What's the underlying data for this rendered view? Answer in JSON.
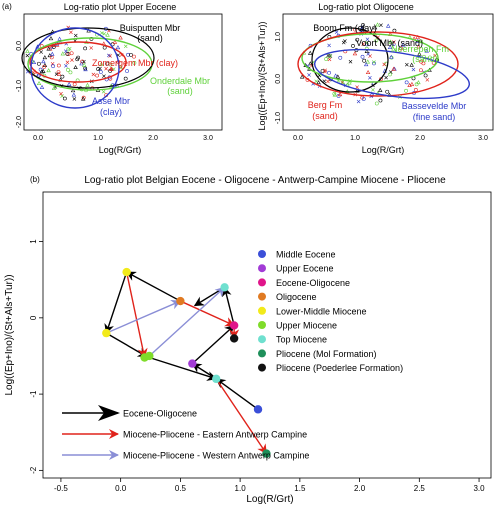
{
  "colors": {
    "middle_eocene": "#3b4fd8",
    "upper_eocene": "#a23bd6",
    "eocene_oligocene": "#e0158a",
    "oligocene": "#e07a22",
    "lower_middle_miocene": "#f2ea1a",
    "upper_miocene": "#7fdc2a",
    "top_miocene": "#6fe0cf",
    "pliocene_mol": "#1e8f5a",
    "pliocene_poederlee": "#111111",
    "arrow_black": "#000000",
    "arrow_red": "#e0231b",
    "arrow_blue": "#8a8ed6",
    "clay_red": "#e0231b",
    "sand_green": "#5fd13a",
    "blue_label": "#2d3bc9",
    "black": "#000000"
  },
  "panel_a": {
    "tag": "(a)",
    "left": {
      "title": "Log-ratio plot Upper Eocene",
      "xlabel": "Log(R/Grt)",
      "ylabel": "Log((Ep+Ino)/(St+Als+Tur))",
      "xticks": [
        "0.0",
        "1.0",
        "2.0",
        "3.0"
      ],
      "yticks": [
        "0.0",
        "-1.0",
        "-2.0"
      ],
      "labels": {
        "buisputten_1": "Buisputten Mbr",
        "buisputten_2": "(sand)",
        "zomergem": "Zomergem Mbr (clay)",
        "onderdale_1": "Onderdale Mbr",
        "onderdale_2": "(sand)",
        "asse_1": "Asse Mbr",
        "asse_2": "(clay)"
      }
    },
    "right": {
      "title": "Log-ratio plot Oligocene",
      "xlabel": "Log(R/Grt)",
      "xticks": [
        "0.0",
        "1.0",
        "2.0",
        "3.0"
      ],
      "yticks": [
        "1.0",
        "0.0",
        "-1.0"
      ],
      "labels": {
        "boom": "Boom Fm (clay)",
        "voort_1": "Voort Mbr (sand)",
        "neerrepen_1": "Neerrepen Fm",
        "neerrepen_2": "(sand)",
        "berg_1": "Berg Fm",
        "berg_2": "(sand)",
        "bassevelde_1": "Bassevelde Mbr",
        "bassevelde_2": "(fine sand)"
      }
    }
  },
  "chart_data": {
    "type": "scatter",
    "tag": "(b)",
    "title": "Log-ratio plot Belgian Eocene - Oligocene - Antwerp-Campine Miocene - Pliocene",
    "xlabel": "Log(R/Grt)",
    "ylabel": "Log((Ep+Ino)/(St+Als+Tur))",
    "xlim": [
      -0.65,
      3.1
    ],
    "ylim": [
      -2.1,
      1.65
    ],
    "xticks": [
      -0.5,
      0.0,
      0.5,
      1.0,
      1.5,
      2.0,
      2.5,
      3.0
    ],
    "yticks": [
      -2,
      -1,
      0,
      1
    ],
    "xtick_labels": [
      "-0.5",
      "0.0",
      "0.5",
      "1.0",
      "1.5",
      "2.0",
      "2.5",
      "3.0"
    ],
    "ytick_labels": [
      "-2",
      "-1",
      "0",
      "1"
    ],
    "points": [
      {
        "x": 1.15,
        "y": -1.2,
        "color": "#3b4fd8"
      },
      {
        "x": 0.6,
        "y": -0.6,
        "color": "#a23bd6"
      },
      {
        "x": 0.95,
        "y": -0.1,
        "color": "#e0158a"
      },
      {
        "x": 0.5,
        "y": 0.22,
        "color": "#e07a22"
      },
      {
        "x": 0.05,
        "y": 0.6,
        "color": "#f2ea1a"
      },
      {
        "x": -0.12,
        "y": -0.2,
        "color": "#f2ea1a"
      },
      {
        "x": 0.2,
        "y": -0.52,
        "color": "#7fdc2a"
      },
      {
        "x": 0.24,
        "y": -0.5,
        "color": "#7fdc2a"
      },
      {
        "x": 0.8,
        "y": -0.8,
        "color": "#6fe0cf"
      },
      {
        "x": 0.87,
        "y": 0.4,
        "color": "#6fe0cf"
      },
      {
        "x": 1.22,
        "y": -1.78,
        "color": "#1e8f5a"
      },
      {
        "x": 0.95,
        "y": -0.27,
        "color": "#111111"
      }
    ],
    "arrows": [
      {
        "from": [
          1.15,
          -1.2
        ],
        "to": [
          0.8,
          -0.8
        ],
        "color": "#000000"
      },
      {
        "from": [
          0.8,
          -0.8
        ],
        "to": [
          0.6,
          -0.6
        ],
        "color": "#000000"
      },
      {
        "from": [
          0.6,
          -0.6
        ],
        "to": [
          0.95,
          -0.1
        ],
        "color": "#000000"
      },
      {
        "from": [
          0.95,
          -0.1
        ],
        "to": [
          0.87,
          0.4
        ],
        "color": "#000000"
      },
      {
        "from": [
          0.87,
          0.4
        ],
        "to": [
          0.62,
          0.16
        ],
        "color": "#000000"
      },
      {
        "from": [
          0.5,
          0.22
        ],
        "to": [
          0.05,
          0.6
        ],
        "color": "#000000"
      },
      {
        "from": [
          0.05,
          0.6
        ],
        "to": [
          -0.12,
          -0.2
        ],
        "color": "#000000"
      },
      {
        "from": [
          -0.12,
          -0.2
        ],
        "to": [
          0.22,
          -0.51
        ],
        "color": "#000000"
      },
      {
        "from": [
          0.22,
          -0.51
        ],
        "to": [
          0.8,
          -0.8
        ],
        "color": "#000000"
      },
      {
        "from": [
          0.5,
          0.22
        ],
        "to": [
          0.95,
          -0.1
        ],
        "color": "#e0231b"
      },
      {
        "from": [
          0.05,
          0.6
        ],
        "to": [
          0.2,
          -0.52
        ],
        "color": "#e0231b"
      },
      {
        "from": [
          0.8,
          -0.8
        ],
        "to": [
          1.22,
          -1.78
        ],
        "color": "#e0231b"
      },
      {
        "from": [
          0.95,
          -0.1
        ],
        "to": [
          0.95,
          -0.27
        ],
        "color": "#e0231b"
      },
      {
        "from": [
          0.24,
          -0.5
        ],
        "to": [
          0.87,
          0.4
        ],
        "color": "#8a8ed6"
      },
      {
        "from": [
          -0.12,
          -0.2
        ],
        "to": [
          0.5,
          0.22
        ],
        "color": "#8a8ed6"
      }
    ],
    "legend": [
      {
        "label": "Middle Eocene",
        "color": "#3b4fd8"
      },
      {
        "label": "Upper Eocene",
        "color": "#a23bd6"
      },
      {
        "label": "Eocene-Oligocene",
        "color": "#e0158a"
      },
      {
        "label": "Oligocene",
        "color": "#e07a22"
      },
      {
        "label": "Lower-Middle Miocene",
        "color": "#f2ea1a"
      },
      {
        "label": "Upper Miocene",
        "color": "#7fdc2a"
      },
      {
        "label": "Top Miocene",
        "color": "#6fe0cf"
      },
      {
        "label": "Pliocene (Mol Formation)",
        "color": "#1e8f5a"
      },
      {
        "label": "Pliocene (Poederlee Formation)",
        "color": "#111111"
      }
    ],
    "arrow_legend": [
      {
        "label": "Eocene-Oligocene",
        "color": "#000000"
      },
      {
        "label": "Miocene-Pliocene - Eastern Antwerp Campine",
        "color": "#e0231b"
      },
      {
        "label": "Miocene-Pliocene - Western Antwerp Campine",
        "color": "#8a8ed6"
      }
    ]
  }
}
